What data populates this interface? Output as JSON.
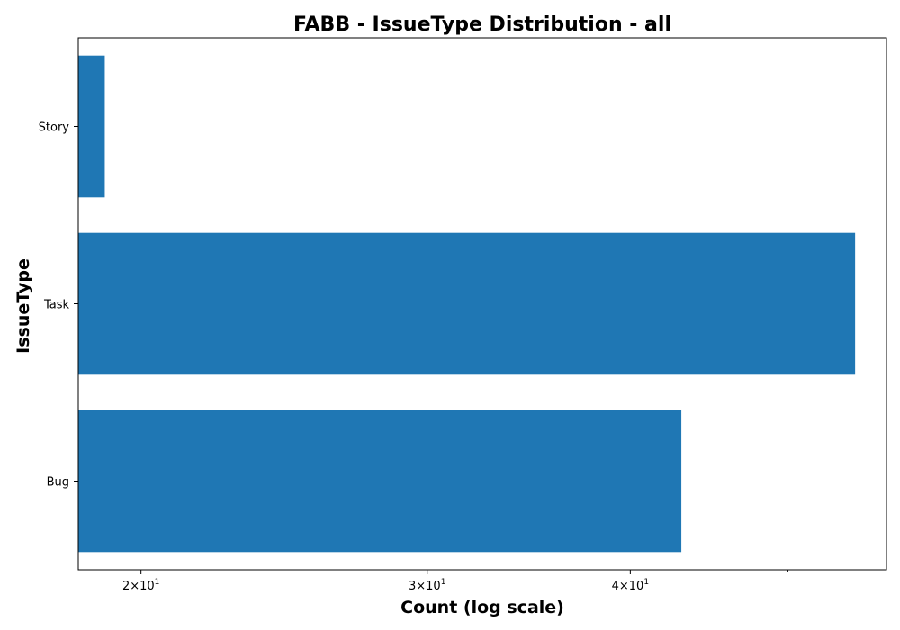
{
  "chart_data": {
    "type": "bar",
    "orientation": "horizontal",
    "title": "FABB - IssueType Distribution - all",
    "xlabel": "Count (log scale)",
    "ylabel": "IssueType",
    "x_scale": "log",
    "xlim": [
      18.3,
      57.5
    ],
    "categories": [
      "Story",
      "Task",
      "Bug"
    ],
    "values": [
      19,
      55,
      43
    ],
    "bar_color": "#1f77b4",
    "x_ticks": [
      {
        "value": 20,
        "base": "2",
        "mult": "×",
        "ten": "10",
        "exp": "1"
      },
      {
        "value": 30,
        "base": "3",
        "mult": "×",
        "ten": "10",
        "exp": "1"
      },
      {
        "value": 40,
        "base": "4",
        "mult": "×",
        "ten": "10",
        "exp": "1"
      }
    ],
    "x_minor_ticks": [
      50
    ],
    "grid": false,
    "legend": "none"
  }
}
